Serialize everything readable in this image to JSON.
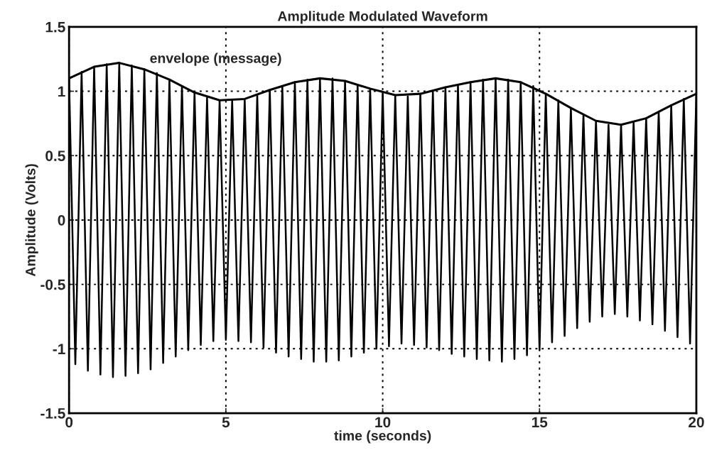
{
  "chart_data": {
    "type": "line",
    "title": "Amplitude Modulated Waveform",
    "xlabel": "time (seconds)",
    "ylabel": "Amplitude (Volts)",
    "series": [
      {
        "color": "#000000",
        "x": [
          0,
          0.2,
          0.4,
          0.6,
          0.8,
          1.0,
          1.2,
          1.4,
          1.6,
          1.8,
          2.0,
          2.2,
          2.4,
          2.6,
          2.8,
          3.0,
          3.2,
          3.4,
          3.6,
          3.8,
          4.0,
          4.2,
          4.4,
          4.6,
          4.8,
          5.0,
          5.2,
          5.4,
          5.6,
          5.8,
          6.0,
          6.2,
          6.4,
          6.6,
          6.8,
          7.0,
          7.2,
          7.4,
          7.6,
          7.8,
          8.0,
          8.2,
          8.4,
          8.6,
          8.8,
          9.0,
          9.2,
          9.4,
          9.6,
          9.8,
          10.0,
          10.2,
          10.4,
          10.6,
          10.8,
          11.0,
          11.2,
          11.4,
          11.6,
          11.8,
          12.0,
          12.2,
          12.4,
          12.6,
          12.8,
          13.0,
          13.2,
          13.4,
          13.6,
          13.8,
          14.0,
          14.2,
          14.4,
          14.6,
          14.8,
          15.0,
          15.2,
          15.4,
          15.6,
          15.8,
          16.0,
          16.2,
          16.4,
          16.6,
          16.8,
          17.0,
          17.2,
          17.4,
          17.6,
          17.8,
          18.0,
          18.2,
          18.4,
          18.6,
          18.8,
          19.0,
          19.2,
          19.4,
          19.6,
          19.8,
          20.0
        ],
        "values": [
          1.1,
          -1.12,
          1.15,
          -1.17,
          1.19,
          -1.2,
          1.21,
          -1.22,
          1.22,
          -1.21,
          1.2,
          -1.19,
          1.17,
          -1.16,
          1.14,
          -1.11,
          1.09,
          -1.06,
          1.04,
          -1.01,
          0.99,
          -0.97,
          0.95,
          -0.94,
          0.93,
          -0.93,
          0.93,
          -0.94,
          0.94,
          -0.95,
          0.97,
          -0.99,
          1.01,
          -1.03,
          1.04,
          -1.06,
          1.07,
          -1.08,
          1.09,
          -1.1,
          1.1,
          -1.1,
          1.1,
          -1.09,
          1.08,
          -1.06,
          1.05,
          -1.03,
          1.02,
          -1.0,
          0.99,
          -0.98,
          0.97,
          -0.96,
          0.96,
          -0.97,
          0.98,
          -0.99,
          1.0,
          -1.01,
          1.03,
          -1.04,
          1.05,
          -1.06,
          1.07,
          -1.08,
          1.09,
          -1.09,
          1.1,
          -1.1,
          1.09,
          -1.08,
          1.07,
          -1.05,
          1.04,
          -1.01,
          0.98,
          -0.95,
          0.93,
          -0.9,
          0.87,
          -0.84,
          0.82,
          -0.79,
          0.77,
          -0.75,
          0.74,
          -0.73,
          0.74,
          -0.75,
          0.76,
          -0.78,
          0.79,
          -0.81,
          0.84,
          -0.86,
          0.89,
          -0.91,
          0.94,
          -0.96,
          0.98
        ]
      },
      {
        "name": "envelope (message)",
        "color": "#000000",
        "x": [
          0,
          0.8,
          1.6,
          2.4,
          3.2,
          4.0,
          4.8,
          5.6,
          6.4,
          7.2,
          8.0,
          8.8,
          9.6,
          10.4,
          11.2,
          12.0,
          12.8,
          13.6,
          14.4,
          15.2,
          16.0,
          16.8,
          17.6,
          18.4,
          19.2,
          20.0
        ],
        "values": [
          1.1,
          1.19,
          1.22,
          1.17,
          1.09,
          0.99,
          0.93,
          0.94,
          1.01,
          1.07,
          1.1,
          1.08,
          1.02,
          0.97,
          0.98,
          1.03,
          1.07,
          1.1,
          1.07,
          0.98,
          0.87,
          0.77,
          0.74,
          0.79,
          0.89,
          0.98
        ]
      }
    ],
    "xlim": [
      0,
      20
    ],
    "xticks": [
      0,
      5,
      10,
      15,
      20
    ],
    "ylim": [
      -1.5,
      1.5
    ],
    "yticks": [
      -1.5,
      -1,
      -0.5,
      0,
      0.5,
      1,
      1.5
    ],
    "grid": true,
    "line_style": "solid"
  }
}
